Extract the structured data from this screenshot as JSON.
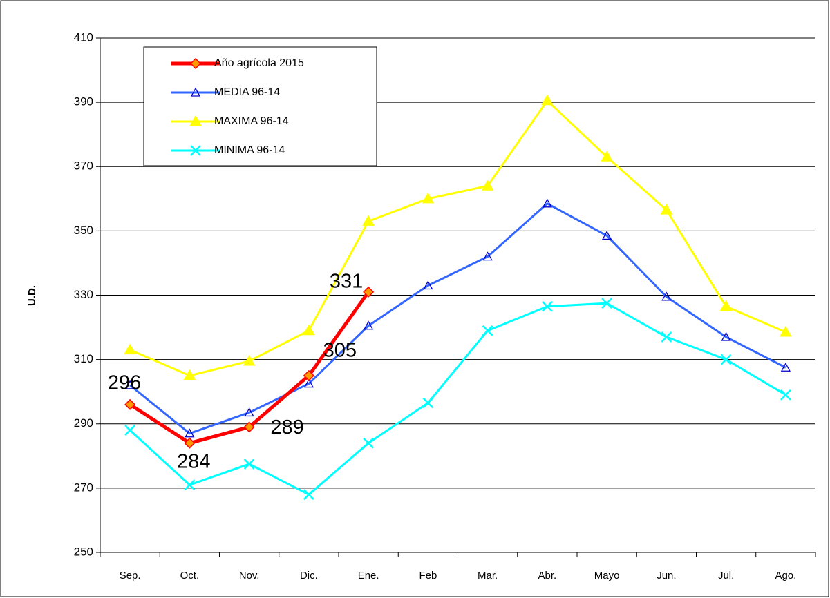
{
  "chart_data": {
    "type": "line",
    "y_label": "U.D.",
    "categories": [
      "Sep.",
      "Oct.",
      "Nov.",
      "Dic.",
      "Ene.",
      "Feb",
      "Mar.",
      "Abr.",
      "Mayo",
      "Jun.",
      "Jul.",
      "Ago."
    ],
    "series": [
      {
        "name": "Año agrícola 2015",
        "color": "#ff0000",
        "marker": "diamond",
        "values": [
          296,
          284,
          289,
          305,
          331,
          null,
          null,
          null,
          null,
          null,
          null,
          null
        ]
      },
      {
        "name": "MEDIA 96-14",
        "color": "#3366ff",
        "marker": "open-triangle",
        "values": [
          302,
          287,
          293.5,
          302.5,
          320.5,
          333,
          342,
          358.5,
          348.5,
          329.5,
          317,
          307.5
        ]
      },
      {
        "name": "MAXIMA 96-14",
        "color": "#ffff00",
        "marker": "triangle",
        "values": [
          313,
          305,
          309.5,
          319,
          353,
          360,
          364,
          390.5,
          373,
          356.5,
          326.5,
          318.5
        ]
      },
      {
        "name": "MINIMA 96-14",
        "color": "#00ffff",
        "marker": "x",
        "values": [
          288,
          271,
          277.5,
          268,
          284,
          296.5,
          319,
          326.5,
          327.5,
          317,
          310,
          299
        ]
      }
    ],
    "ylim": [
      250,
      410
    ],
    "yticks": [
      250,
      270,
      290,
      310,
      330,
      350,
      370,
      390,
      410
    ],
    "grid": true
  }
}
